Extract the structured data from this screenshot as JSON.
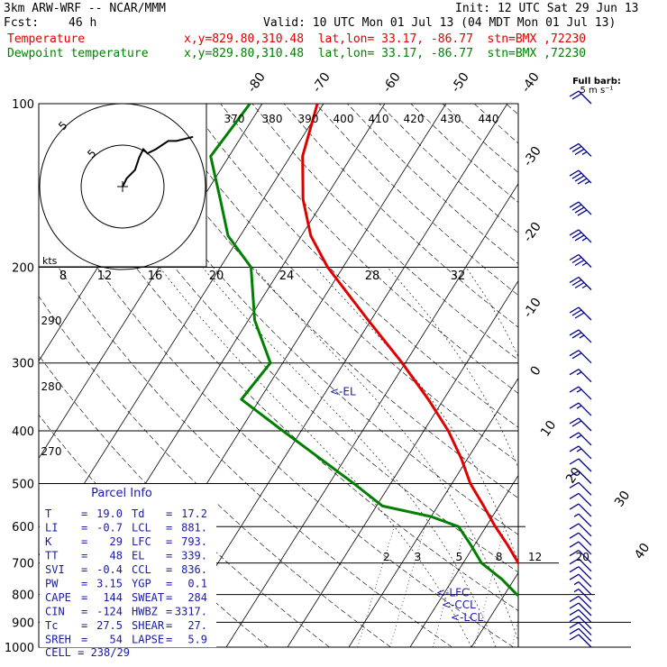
{
  "header": {
    "model": "3km ARW-WRF -- NCAR/MMM",
    "init": "Init: 12 UTC Sat 29 Jun 13",
    "fcst_label": "Fcst:",
    "fcst_value": "46 h",
    "valid": "Valid: 10 UTC Mon 01 Jul 13 (04 MDT Mon 01 Jul 13)",
    "temp_label": "Temperature",
    "temp_info": "x,y=829.80,310.48  lat,lon= 33.17, -86.77  stn=BMX ,72230",
    "dew_label": "Dewpoint temperature",
    "dew_info": "x,y=829.80,310.48  lat,lon= 33.17, -86.77  stn=BMX ,72230"
  },
  "barb_key": "Full barb:\n5 m s⁻¹",
  "colors": {
    "temperature": "#e00000",
    "dewpoint": "#008000",
    "wind": "#00008b",
    "text_blue": "#1a1aa8",
    "grid": "#000000"
  },
  "chart_data": {
    "type": "skew-t",
    "pressure_levels": [
      100,
      200,
      300,
      400,
      500,
      600,
      700,
      800,
      900,
      1000
    ],
    "pressure_axis": {
      "ylim": [
        1000,
        100
      ],
      "scale": "log"
    },
    "isotherm_labels": [
      "-80",
      "-70",
      "-60",
      "-50",
      "-40",
      "-30",
      "-20",
      "-10",
      "0",
      "10",
      "20",
      "30",
      "40"
    ],
    "isotherm_values": [
      -80,
      -70,
      -60,
      -50,
      -40,
      -30,
      -20,
      -10,
      0,
      10,
      20,
      30,
      40
    ],
    "theta_labels": [
      "370",
      "380",
      "390",
      "400",
      "410",
      "420",
      "430",
      "440",
      "290",
      "280",
      "270"
    ],
    "mixing_ratio_labels": [
      "2",
      "3",
      "5",
      "8",
      "12",
      "20"
    ],
    "mixing_ratio_values": [
      2,
      3,
      5,
      8,
      12,
      20
    ],
    "hodograph": {
      "kts_label": "kts",
      "ring_labels": [
        "5",
        "5"
      ],
      "speed_labels": [
        "8",
        "12",
        "16",
        "20",
        "24",
        "28",
        "32"
      ],
      "speed_values": [
        8,
        12,
        16,
        20,
        24,
        28,
        32
      ],
      "trace_uv": [
        [
          0,
          0
        ],
        [
          1,
          2
        ],
        [
          3,
          4
        ],
        [
          4,
          7
        ],
        [
          5,
          9
        ],
        [
          6,
          8
        ],
        [
          8,
          9
        ],
        [
          11,
          11
        ],
        [
          13,
          11
        ],
        [
          17,
          12
        ]
      ]
    },
    "temperature_profile": [
      [
        1000,
        28.0
      ],
      [
        975,
        27.5
      ],
      [
        950,
        25.0
      ],
      [
        925,
        23.0
      ],
      [
        900,
        20.5
      ],
      [
        850,
        17.5
      ],
      [
        800,
        16.0
      ],
      [
        750,
        12.5
      ],
      [
        700,
        9.0
      ],
      [
        650,
        5.5
      ],
      [
        600,
        1.5
      ],
      [
        550,
        -2.5
      ],
      [
        500,
        -7.0
      ],
      [
        450,
        -11.0
      ],
      [
        400,
        -16.0
      ],
      [
        350,
        -22.5
      ],
      [
        300,
        -30.5
      ],
      [
        250,
        -40.5
      ],
      [
        200,
        -52.5
      ],
      [
        175,
        -58.5
      ],
      [
        150,
        -63.5
      ],
      [
        125,
        -68.0
      ],
      [
        100,
        -71.0
      ]
    ],
    "dewpoint_profile": [
      [
        980,
        20.0
      ],
      [
        960,
        19.5
      ],
      [
        940,
        19.5
      ],
      [
        925,
        19.0
      ],
      [
        900,
        19.5
      ],
      [
        880,
        19.5
      ],
      [
        850,
        17.5
      ],
      [
        800,
        12.0
      ],
      [
        750,
        8.0
      ],
      [
        700,
        3.0
      ],
      [
        650,
        -0.5
      ],
      [
        600,
        -4.5
      ],
      [
        575,
        -10.0
      ],
      [
        550,
        -19.0
      ],
      [
        500,
        -26.0
      ],
      [
        450,
        -34.0
      ],
      [
        400,
        -43.0
      ],
      [
        350,
        -53.0
      ],
      [
        300,
        -52.0
      ],
      [
        250,
        -59.0
      ],
      [
        200,
        -65.0
      ],
      [
        175,
        -72.0
      ],
      [
        150,
        -77.0
      ],
      [
        125,
        -83.0
      ],
      [
        100,
        -82.0
      ]
    ],
    "annotations": [
      {
        "text": "<-EL",
        "p": 339
      },
      {
        "text": "<-LFC",
        "p": 793
      },
      {
        "text": "<-CCL",
        "p": 836
      },
      {
        "text": "<-LCL",
        "p": 881
      }
    ],
    "wind_barbs_kt": [
      [
        100,
        20
      ],
      [
        125,
        35
      ],
      [
        140,
        45
      ],
      [
        160,
        40
      ],
      [
        180,
        35
      ],
      [
        200,
        35
      ],
      [
        220,
        35
      ],
      [
        250,
        30
      ],
      [
        275,
        25
      ],
      [
        300,
        20
      ],
      [
        325,
        15
      ],
      [
        350,
        15
      ],
      [
        375,
        15
      ],
      [
        400,
        20
      ],
      [
        425,
        15
      ],
      [
        450,
        15
      ],
      [
        475,
        10
      ],
      [
        500,
        10
      ],
      [
        525,
        10
      ],
      [
        550,
        10
      ],
      [
        575,
        10
      ],
      [
        600,
        5
      ],
      [
        625,
        10
      ],
      [
        650,
        10
      ],
      [
        675,
        10
      ],
      [
        700,
        10
      ],
      [
        725,
        10
      ],
      [
        750,
        10
      ],
      [
        775,
        10
      ],
      [
        800,
        5
      ],
      [
        825,
        5
      ],
      [
        850,
        10
      ],
      [
        875,
        10
      ],
      [
        900,
        10
      ],
      [
        925,
        10
      ],
      [
        950,
        10
      ],
      [
        975,
        10
      ],
      [
        1000,
        10
      ]
    ],
    "parcel_info": {
      "title": "Parcel Info",
      "rows": [
        [
          "T",
          "19.0",
          "Td",
          "17.2"
        ],
        [
          "LI",
          "-0.7",
          "LCL",
          "881."
        ],
        [
          "K",
          "29",
          "LFC",
          "793."
        ],
        [
          "TT",
          "48",
          "EL",
          "339."
        ],
        [
          "SVI",
          "-0.4",
          "CCL",
          "836."
        ],
        [
          "PW",
          "3.15",
          "YGP",
          "0.1"
        ],
        [
          "CAPE",
          "144",
          "SWEAT",
          "284"
        ],
        [
          "CIN",
          "-124",
          "HWBZ",
          "3317."
        ],
        [
          "Tc",
          "27.5",
          "SHEAR",
          "27."
        ],
        [
          "SREH",
          "54",
          "LAPSE",
          "5.9"
        ]
      ],
      "cell": "CELL = 238/29"
    }
  }
}
